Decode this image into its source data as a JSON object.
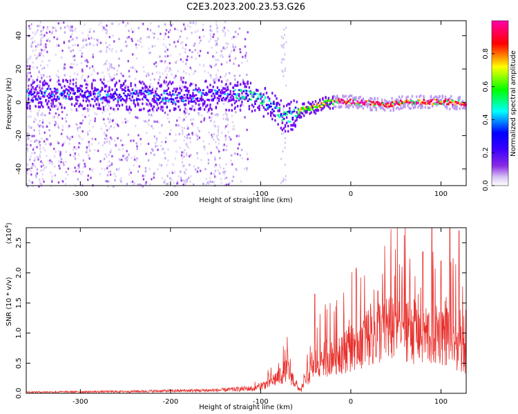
{
  "figure_title": "C2E3.2023.200.23.53.G26",
  "chart_data": [
    {
      "type": "heatmap",
      "xlabel": "Height of straight line (km)",
      "ylabel": "Frequency (Hz)",
      "xlim": [
        -360,
        128
      ],
      "ylim": [
        -50,
        49
      ],
      "xticks": [
        "-300",
        "-200",
        "-100",
        "0",
        "100"
      ],
      "xtick_values": [
        -300,
        -200,
        -100,
        0,
        100
      ],
      "yticks": [
        "-40",
        "-20",
        "0",
        "20",
        "40"
      ],
      "ytick_values": [
        -40,
        -20,
        0,
        20,
        40
      ],
      "colorbar": {
        "label": "Normalized spectral amplitude",
        "range": [
          0,
          1
        ],
        "ticks": [
          "0.0",
          "0.2",
          "0.4",
          "0.6",
          "0.8"
        ],
        "tick_values": [
          0.0,
          0.2,
          0.4,
          0.6,
          0.8
        ],
        "colormap": [
          "#ffffff",
          "#d9c7f5",
          "#7d00ff",
          "#0000ff",
          "#00ffff",
          "#00ff00",
          "#ffff00",
          "#ff0000",
          "#ff00aa"
        ]
      },
      "ridge": {
        "x": [
          -360,
          -300,
          -250,
          -200,
          -150,
          -120,
          -100,
          -90,
          -80,
          -75,
          -70,
          -60,
          -50,
          -40,
          -30,
          -20,
          0,
          20,
          40,
          60,
          80,
          100,
          128
        ],
        "y": [
          5,
          6,
          5,
          4,
          5,
          5,
          2,
          -2,
          -5,
          -8,
          -8,
          -5,
          -3,
          -2,
          0,
          1,
          1,
          0,
          -1,
          1,
          1,
          1,
          0
        ]
      }
    },
    {
      "type": "line",
      "xlabel": "Height of straight line (km)",
      "ylabel": "SNR (10 * v/v)",
      "y_multiplier": "(x10",
      "y_multiplier_exp": "4",
      "y_multiplier_close": ")",
      "xlim": [
        -360,
        128
      ],
      "ylim": [
        0,
        2.75
      ],
      "xticks": [
        "-300",
        "-200",
        "-100",
        "0",
        "100"
      ],
      "xtick_values": [
        -300,
        -200,
        -100,
        0,
        100
      ],
      "yticks": [
        "0.0",
        "0.5",
        "1.0",
        "1.5",
        "2.0",
        "2.5"
      ],
      "ytick_values": [
        0.0,
        0.5,
        1.0,
        1.5,
        2.0,
        2.5
      ],
      "color": "#e8302c",
      "envelope": {
        "x": [
          -360,
          -250,
          -150,
          -110,
          -100,
          -90,
          -80,
          -70,
          -60,
          -55,
          -50,
          -45,
          -40,
          -35,
          -30,
          -20,
          -10,
          0,
          10,
          20,
          40,
          60,
          70,
          80,
          90,
          100,
          110,
          120,
          128
        ],
        "y": [
          0.02,
          0.03,
          0.05,
          0.08,
          0.15,
          0.22,
          0.35,
          0.5,
          0.15,
          0.05,
          0.3,
          0.45,
          0.6,
          0.7,
          0.75,
          0.85,
          0.9,
          1.0,
          1.15,
          1.2,
          1.4,
          1.5,
          1.35,
          1.2,
          1.25,
          1.3,
          1.2,
          1.0,
          0.9
        ]
      },
      "peaks": [
        {
          "x": -70,
          "y": 0.7
        },
        {
          "x": -40,
          "y": 1.65
        },
        {
          "x": 30,
          "y": 1.7
        },
        {
          "x": 80,
          "y": 2.35
        },
        {
          "x": 90,
          "y": 2.75
        },
        {
          "x": 100,
          "y": 2.2
        },
        {
          "x": 110,
          "y": 2.75
        },
        {
          "x": 120,
          "y": 2.7
        }
      ]
    }
  ]
}
